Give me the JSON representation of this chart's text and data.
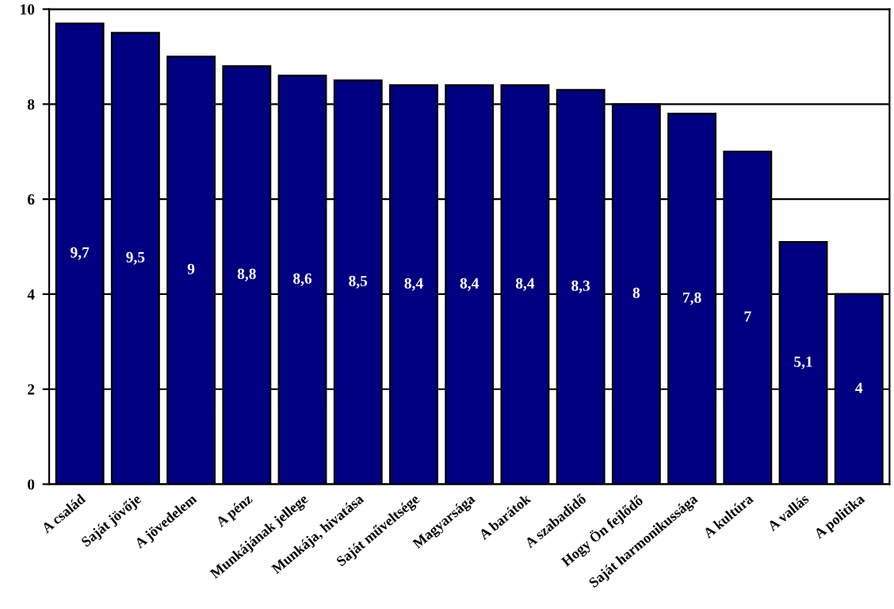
{
  "chart_data": {
    "type": "bar",
    "categories": [
      "A család",
      "Saját jövője",
      "A jövedelem",
      "A pénz",
      "Munkájának jellege",
      "Munkája, hivatása",
      "Saját műveltsége",
      "Magyarsága",
      "A barátok",
      "A szabadidő",
      "Hogy Ön fejlődő",
      "Saját harmonikussága",
      "A kultúra",
      "A vallás",
      "A politika"
    ],
    "values": [
      9.7,
      9.5,
      9,
      8.8,
      8.6,
      8.5,
      8.4,
      8.4,
      8.4,
      8.3,
      8,
      7.8,
      7,
      5.1,
      4
    ],
    "value_labels": [
      "9,7",
      "9,5",
      "9",
      "8,8",
      "8,6",
      "8,5",
      "8,4",
      "8,4",
      "8,4",
      "8,3",
      "8",
      "7,8",
      "7",
      "5,1",
      "4"
    ],
    "color": "#000080",
    "ylim": [
      0,
      10
    ],
    "yticks": [
      0,
      2,
      4,
      6,
      8,
      10
    ],
    "grid": "y"
  }
}
